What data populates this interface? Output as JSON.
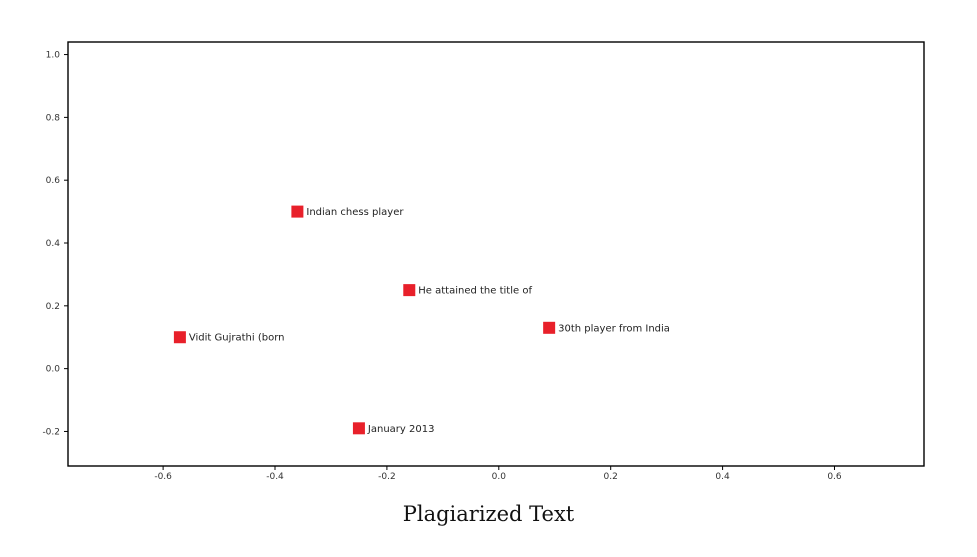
{
  "chart_data": {
    "type": "scatter",
    "title": "Plagiarized Text",
    "xlabel": "",
    "ylabel": "",
    "xlim": [
      -0.77,
      0.76
    ],
    "ylim": [
      -0.31,
      1.04
    ],
    "xticks": [
      -0.6,
      -0.4,
      -0.2,
      0.0,
      0.2,
      0.4,
      0.6
    ],
    "xtick_labels": [
      "-0.6",
      "-0.4",
      "-0.2",
      "0.0",
      "0.2",
      "0.4",
      "0.6"
    ],
    "yticks": [
      -0.2,
      0.0,
      0.2,
      0.4,
      0.6,
      0.8,
      1.0
    ],
    "ytick_labels": [
      "-0.2",
      "0.0",
      "0.2",
      "0.4",
      "0.6",
      "0.8",
      "1.0"
    ],
    "grid": false,
    "marker": "square",
    "marker_color": "#e8202a",
    "points": [
      {
        "x": -0.36,
        "y": 0.5,
        "label": "Indian chess player"
      },
      {
        "x": -0.16,
        "y": 0.25,
        "label": "He attained the title of"
      },
      {
        "x": 0.09,
        "y": 0.13,
        "label": "30th player from India"
      },
      {
        "x": -0.57,
        "y": 0.1,
        "label": "Vidit Gujrathi (born"
      },
      {
        "x": -0.25,
        "y": -0.19,
        "label": "January 2013"
      }
    ]
  }
}
